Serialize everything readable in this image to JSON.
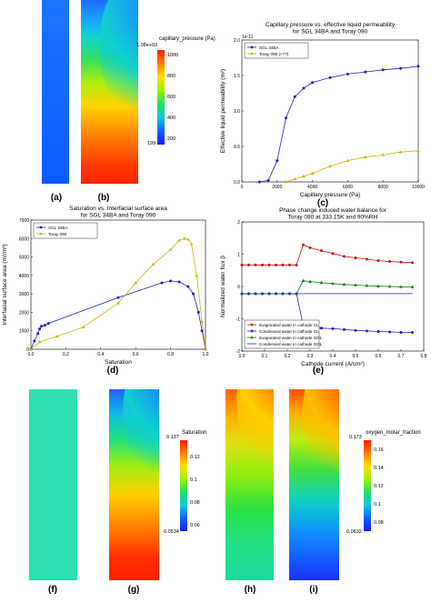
{
  "panels": {
    "a": "(a)",
    "b": "(b)",
    "c": "(c)",
    "d": "(d)",
    "e": "(e)",
    "f": "(f)",
    "g": "(g)",
    "h": "(h)",
    "i": "(i)"
  },
  "colorbars": {
    "pressure": {
      "title": "capillary_pressure (Pa)",
      "max_label": "1.08e+03",
      "ticks": [
        "1000",
        "800",
        "600",
        "400",
        "200"
      ],
      "min_label": "199"
    },
    "saturation": {
      "title": "Saturation",
      "max_label": "0.137",
      "ticks": [
        "0.12",
        "0.1",
        "0.08",
        "0.06"
      ],
      "min_label": "0.0534"
    },
    "oxygen": {
      "title": "oxygen_molar_fraction",
      "max_label": "0.173",
      "ticks": [
        "0.16",
        "0.14",
        "0.12",
        "0.1",
        "0.08"
      ],
      "min_label": "0.0632"
    }
  },
  "chart_data": [
    {
      "id": "c",
      "type": "line",
      "title": "Capillary pressure vs. effective liquid permeability\nfor SGL 34BA and Toray 090",
      "xlabel": "Capillary pressure (Pa)",
      "ylabel": "Effective liquid permeability (m²)",
      "y_exponent": "1e-11",
      "xlim": [
        0,
        10000
      ],
      "ylim": [
        0,
        2.0
      ],
      "xticks": [
        "0",
        "2000",
        "4000",
        "6000",
        "8000",
        "10000"
      ],
      "yticks": [
        "0.0",
        "0.5",
        "1.0",
        "1.5",
        "2.0"
      ],
      "legend_position": "upper-left",
      "series": [
        {
          "name": "SGL 34BA",
          "color": "#1f1fc8",
          "marker": "circle",
          "x": [
            1000,
            1500,
            2000,
            2500,
            3000,
            3500,
            4000,
            5000,
            6000,
            7000,
            8000,
            9000,
            10000
          ],
          "y": [
            0,
            0.02,
            0.3,
            0.9,
            1.2,
            1.32,
            1.4,
            1.47,
            1.52,
            1.55,
            1.58,
            1.6,
            1.63
          ]
        },
        {
          "name": "Toray 090 (×??)",
          "color": "#c8b400",
          "marker": "triangle",
          "x": [
            2500,
            3000,
            3500,
            4000,
            5000,
            6000,
            7000,
            8000,
            9000,
            10000
          ],
          "y": [
            0,
            0.04,
            0.08,
            0.12,
            0.22,
            0.3,
            0.35,
            0.38,
            0.42,
            0.44
          ]
        }
      ]
    },
    {
      "id": "d",
      "type": "line",
      "title": "Saturation vs. Interfacial surface area\nfor SGL 34BA and Toray 090",
      "xlabel": "Saturation",
      "ylabel": "Interfacial surface area (m²/m³)",
      "xlim": [
        0,
        1.0
      ],
      "ylim": [
        0,
        7000
      ],
      "xticks": [
        "0.0",
        "0.2",
        "0.4",
        "0.6",
        "0.8",
        "1.0"
      ],
      "yticks": [
        "0",
        "1000",
        "2000",
        "3000",
        "4000",
        "5000",
        "6000",
        "7000"
      ],
      "legend_position": "upper-left",
      "series": [
        {
          "name": "SGL 34BA",
          "color": "#1f1fc8",
          "marker": "circle",
          "x": [
            0,
            0.02,
            0.04,
            0.05,
            0.06,
            0.08,
            0.1,
            0.5,
            0.75,
            0.8,
            0.85,
            0.9,
            0.93,
            0.96,
            0.98,
            1.0
          ],
          "y": [
            0,
            450,
            850,
            1100,
            1250,
            1300,
            1400,
            2800,
            3600,
            3700,
            3650,
            3400,
            3000,
            2000,
            1000,
            0
          ]
        },
        {
          "name": "Toray 090",
          "color": "#c8b400",
          "marker": "triangle",
          "x": [
            0,
            0.05,
            0.15,
            0.3,
            0.5,
            0.6,
            0.7,
            0.8,
            0.85,
            0.88,
            0.9,
            0.92,
            0.95,
            0.98,
            1.0
          ],
          "y": [
            0,
            400,
            700,
            1200,
            2500,
            3600,
            4600,
            5400,
            5900,
            6000,
            5950,
            5700,
            4000,
            1500,
            0
          ]
        }
      ]
    },
    {
      "id": "e",
      "type": "line",
      "title": "Phase change induced water balance for\nToray 090 at 333.15K and 90%RH",
      "xlabel": "Cathode current (A/cm²)",
      "ylabel": "Normalized water flux β",
      "xlim": [
        0,
        0.8
      ],
      "ylim": [
        -2,
        2.5
      ],
      "xticks": [
        "0.0",
        "0.1",
        "0.2",
        "0.3",
        "0.4",
        "0.5",
        "0.6",
        "0.7",
        "0.8"
      ],
      "yticks": [
        "-2",
        "-1",
        "0",
        "1",
        "2"
      ],
      "legend_position": "lower-left",
      "series": [
        {
          "name": "Evaporated water in cathode CL",
          "color": "#cc1111",
          "marker": "circle",
          "x": [
            0.0,
            0.03,
            0.06,
            0.09,
            0.12,
            0.15,
            0.18,
            0.21,
            0.24,
            0.27,
            0.3,
            0.35,
            0.4,
            0.45,
            0.5,
            0.55,
            0.6,
            0.65,
            0.7,
            0.75
          ],
          "y": [
            1.0,
            1.0,
            1.0,
            1.0,
            1.0,
            1.0,
            1.0,
            1.0,
            1.0,
            1.7,
            1.6,
            1.5,
            1.4,
            1.3,
            1.25,
            1.2,
            1.15,
            1.12,
            1.1,
            1.08
          ]
        },
        {
          "name": "Condensed water in cathode CL",
          "color": "#1f1fc8",
          "marker": "circle",
          "x": [
            0.0,
            0.03,
            0.06,
            0.09,
            0.12,
            0.15,
            0.18,
            0.21,
            0.24,
            0.27,
            0.3,
            0.35,
            0.4,
            0.45,
            0.5,
            0.55,
            0.6,
            0.65,
            0.7,
            0.75
          ],
          "y": [
            0,
            0,
            0,
            0,
            0,
            0,
            0,
            0,
            0,
            -1.1,
            -1.15,
            -1.2,
            -1.22,
            -1.25,
            -1.28,
            -1.3,
            -1.32,
            -1.33,
            -1.35,
            -1.35
          ]
        },
        {
          "name": "Evaporated water in cathode GDL",
          "color": "#117711",
          "marker": "triangle",
          "x": [
            0.0,
            0.03,
            0.06,
            0.09,
            0.12,
            0.15,
            0.18,
            0.21,
            0.24,
            0.27,
            0.3,
            0.35,
            0.4,
            0.45,
            0.5,
            0.55,
            0.6,
            0.65,
            0.7,
            0.75
          ],
          "y": [
            0,
            0,
            0,
            0,
            0,
            0,
            0,
            0,
            0,
            0.45,
            0.42,
            0.38,
            0.35,
            0.32,
            0.3,
            0.28,
            0.26,
            0.25,
            0.24,
            0.23
          ]
        },
        {
          "name": "Condensed water in cathode GDL",
          "color": "#1f1fc8",
          "marker": "none",
          "x": [
            0.0,
            0.75
          ],
          "y": [
            0,
            0
          ]
        }
      ]
    }
  ]
}
